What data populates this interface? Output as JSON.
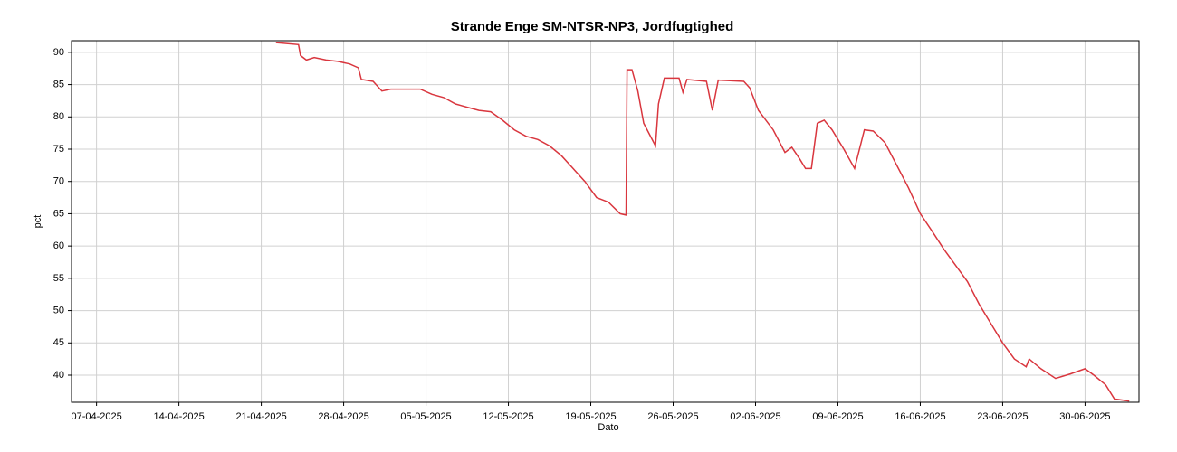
{
  "chart_data": {
    "type": "line",
    "title": "Strande Enge SM-NTSR-NP3, Jordfugtighed",
    "xlabel": "Dato",
    "ylabel": "pct",
    "color": "#d9363e",
    "grid": true,
    "x": [
      "2025-04-22T06:00",
      "2025-04-24T04:00",
      "2025-04-24T08:00",
      "2025-04-24T20:00",
      "2025-04-25T12:00",
      "2025-04-26T12:00",
      "2025-04-27T12:00",
      "2025-04-28T12:00",
      "2025-04-29T06:00",
      "2025-04-29T12:00",
      "2025-04-30T12:00",
      "2025-05-01T06:00",
      "2025-05-02T00:00",
      "2025-05-04T12:00",
      "2025-05-05T12:00",
      "2025-05-06T12:00",
      "2025-05-07T12:00",
      "2025-05-08T12:00",
      "2025-05-09T12:00",
      "2025-05-10T12:00",
      "2025-05-11T12:00",
      "2025-05-12T12:00",
      "2025-05-13T12:00",
      "2025-05-14T12:00",
      "2025-05-15T12:00",
      "2025-05-16T12:00",
      "2025-05-17T12:00",
      "2025-05-18T12:00",
      "2025-05-19T12:00",
      "2025-05-20T12:00",
      "2025-05-21T12:00",
      "2025-05-22T00:00",
      "2025-05-22T02:00",
      "2025-05-22T12:00",
      "2025-05-23T00:00",
      "2025-05-23T12:00",
      "2025-05-24T12:00",
      "2025-05-24T18:00",
      "2025-05-25T06:00",
      "2025-05-26T12:00",
      "2025-05-26T20:00",
      "2025-05-27T04:00",
      "2025-05-28T20:00",
      "2025-05-29T08:00",
      "2025-05-29T20:00",
      "2025-06-01T00:00",
      "2025-06-01T12:00",
      "2025-06-02T06:00",
      "2025-06-03T12:00",
      "2025-06-04T12:00",
      "2025-06-05T02:00",
      "2025-06-05T18:00",
      "2025-06-06T06:00",
      "2025-06-06T18:00",
      "2025-06-07T06:00",
      "2025-06-07T20:00",
      "2025-06-08T12:00",
      "2025-06-09T12:00",
      "2025-06-10T10:00",
      "2025-06-11T06:00",
      "2025-06-12T00:00",
      "2025-06-13T00:00",
      "2025-06-14T00:00",
      "2025-06-15T00:00",
      "2025-06-16T00:00",
      "2025-06-17T00:00",
      "2025-06-18T00:00",
      "2025-06-19T00:00",
      "2025-06-20T00:00",
      "2025-06-21T00:00",
      "2025-06-22T00:00",
      "2025-06-23T00:00",
      "2025-06-24T00:00",
      "2025-06-25T00:00",
      "2025-06-25T06:00",
      "2025-06-26T06:00",
      "2025-06-27T12:00",
      "2025-06-28T18:00",
      "2025-06-30T00:00",
      "2025-06-30T18:00",
      "2025-07-01T18:00",
      "2025-07-02T12:00",
      "2025-07-03T18:00"
    ],
    "values": [
      91.5,
      91.2,
      89.5,
      88.8,
      89.2,
      88.8,
      88.6,
      88.2,
      87.6,
      85.8,
      85.5,
      84.0,
      84.3,
      84.3,
      83.5,
      83.0,
      82.0,
      81.5,
      81.0,
      80.8,
      79.5,
      78.0,
      77.0,
      76.5,
      75.5,
      74.0,
      72.0,
      70.0,
      67.5,
      66.8,
      65.0,
      64.8,
      87.3,
      87.3,
      84.0,
      79.0,
      75.5,
      82.0,
      86.0,
      86.0,
      83.8,
      85.8,
      85.5,
      81.0,
      85.7,
      85.5,
      84.5,
      81.0,
      78.0,
      74.5,
      75.3,
      73.5,
      72.0,
      72.0,
      79.0,
      79.5,
      78.0,
      75.0,
      72.0,
      78.0,
      77.8,
      76.0,
      72.5,
      69.0,
      65.0,
      62.3,
      59.5,
      57.0,
      54.5,
      51.0,
      48.0,
      45.0,
      42.5,
      41.3,
      42.5,
      41.0,
      39.5,
      40.2,
      41.0,
      40.0,
      38.5,
      36.3,
      36.0
    ],
    "xlim": [
      "2025-04-04T21:00",
      "2025-07-04T14:00"
    ],
    "xticks": [
      {
        "value": "2025-04-07T00:00",
        "label": "07-04-2025"
      },
      {
        "value": "2025-04-14T00:00",
        "label": "14-04-2025"
      },
      {
        "value": "2025-04-21T00:00",
        "label": "21-04-2025"
      },
      {
        "value": "2025-04-28T00:00",
        "label": "28-04-2025"
      },
      {
        "value": "2025-05-05T00:00",
        "label": "05-05-2025"
      },
      {
        "value": "2025-05-12T00:00",
        "label": "12-05-2025"
      },
      {
        "value": "2025-05-19T00:00",
        "label": "19-05-2025"
      },
      {
        "value": "2025-05-26T00:00",
        "label": "26-05-2025"
      },
      {
        "value": "2025-06-02T00:00",
        "label": "02-06-2025"
      },
      {
        "value": "2025-06-09T00:00",
        "label": "09-06-2025"
      },
      {
        "value": "2025-06-16T00:00",
        "label": "16-06-2025"
      },
      {
        "value": "2025-06-23T00:00",
        "label": "23-06-2025"
      },
      {
        "value": "2025-06-30T00:00",
        "label": "30-06-2025"
      }
    ],
    "ylim": [
      35.8,
      91.8
    ],
    "yticks": [
      40,
      45,
      50,
      55,
      60,
      65,
      70,
      75,
      80,
      85,
      90
    ]
  }
}
